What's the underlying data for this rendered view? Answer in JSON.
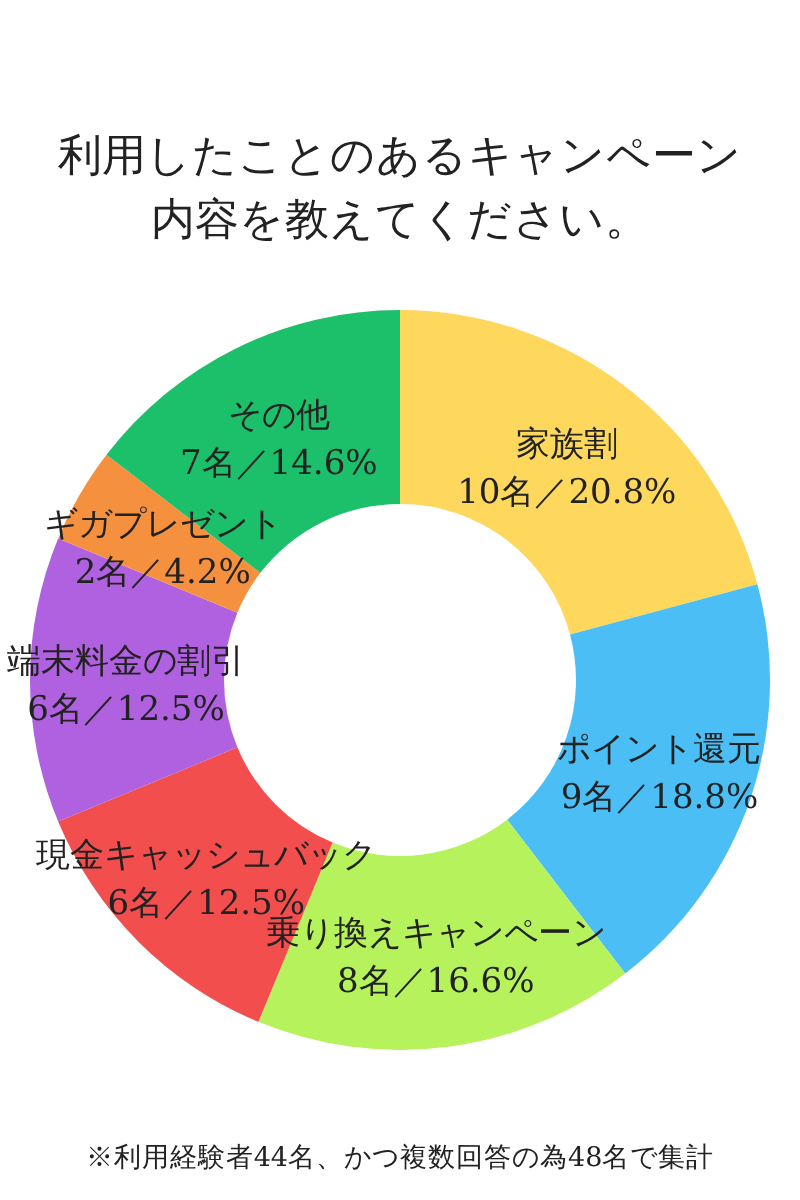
{
  "chart_data": {
    "type": "donut",
    "title": "利用したことのあるキャンペーン内容を教えてください。",
    "categories": [
      "家族割",
      "ポイント還元",
      "乗り換えキャンペーン",
      "現金キャッシュバック",
      "端末料金の割引",
      "ギガプレゼント",
      "その他"
    ],
    "values": [
      10,
      9,
      8,
      6,
      6,
      2,
      7
    ],
    "value_labels": [
      "10名／20.8%",
      "9名／18.8%",
      "8名／16.6%",
      "6名／12.5%",
      "6名／12.5%",
      "2名／4.2%",
      "7名／14.6%"
    ],
    "colors": [
      "#fdd85d",
      "#4bbff5",
      "#b6f25c",
      "#f24e4e",
      "#b061e0",
      "#f5913e",
      "#1cbf6a"
    ],
    "annotations": [
      "※利用経験者44名、かつ複数回答の為48名で集計"
    ]
  }
}
